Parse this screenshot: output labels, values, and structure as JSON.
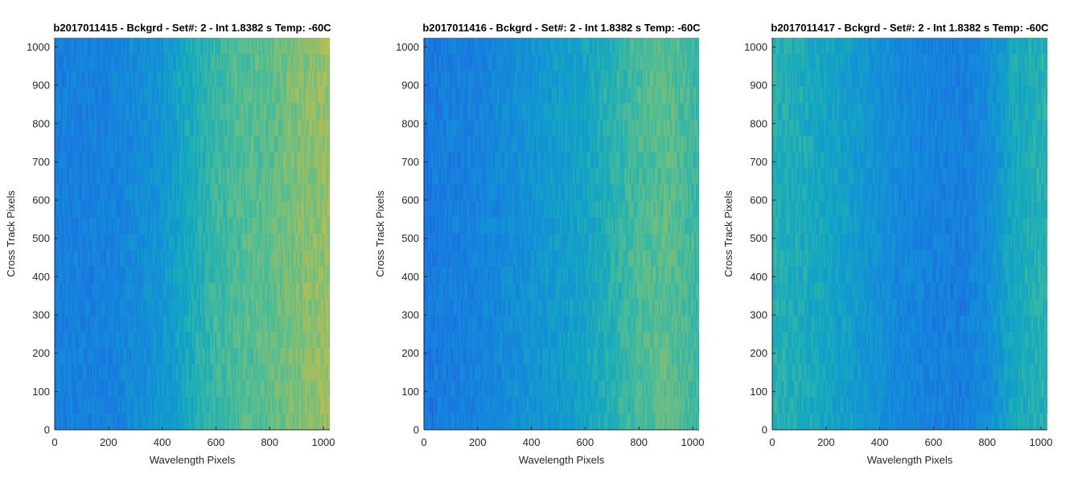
{
  "chart_data": [
    {
      "type": "heatmap",
      "title": "b2017011415 - Bckgrd - Set#: 2 - Int 1.8382 s Temp: -60C",
      "xlabel": "Wavelength Pixels",
      "ylabel": "Cross Track Pixels",
      "xlim": [
        0,
        1024
      ],
      "ylim": [
        0,
        1024
      ],
      "xticks": [
        "0",
        "200",
        "400",
        "600",
        "800",
        "1000"
      ],
      "yticks": [
        "0",
        "100",
        "200",
        "300",
        "400",
        "500",
        "600",
        "700",
        "800",
        "900",
        "1000"
      ],
      "colormap": "parula",
      "intensity_by_wavelength": {
        "x": [
          0,
          200,
          400,
          500,
          600,
          700,
          800,
          900,
          1024
        ],
        "relative_level": [
          0.25,
          0.25,
          0.35,
          0.45,
          0.55,
          0.6,
          0.62,
          0.68,
          0.72
        ]
      }
    },
    {
      "type": "heatmap",
      "title": "b2017011416 - Bckgrd - Set#: 2 - Int 1.8382 s Temp: -60C",
      "xlabel": "Wavelength Pixels",
      "ylabel": "Cross Track Pixels",
      "xlim": [
        0,
        1024
      ],
      "ylim": [
        0,
        1024
      ],
      "xticks": [
        "0",
        "200",
        "400",
        "600",
        "800",
        "1000"
      ],
      "yticks": [
        "0",
        "100",
        "200",
        "300",
        "400",
        "500",
        "600",
        "700",
        "800",
        "900",
        "1000"
      ],
      "colormap": "parula",
      "intensity_by_wavelength": {
        "x": [
          0,
          200,
          400,
          600,
          700,
          800,
          900,
          1024
        ],
        "relative_level": [
          0.22,
          0.26,
          0.34,
          0.42,
          0.5,
          0.58,
          0.62,
          0.55
        ]
      }
    },
    {
      "type": "heatmap",
      "title": "b2017011417 - Bckgrd - Set#: 2 - Int 1.8382 s Temp: -60C",
      "xlabel": "Wavelength Pixels",
      "ylabel": "Cross Track Pixels",
      "xlim": [
        0,
        1024
      ],
      "ylim": [
        0,
        1024
      ],
      "xticks": [
        "0",
        "200",
        "400",
        "600",
        "800",
        "1000"
      ],
      "yticks": [
        "0",
        "100",
        "200",
        "300",
        "400",
        "500",
        "600",
        "700",
        "800",
        "900",
        "1000"
      ],
      "colormap": "parula",
      "intensity_by_wavelength": {
        "x": [
          0,
          150,
          300,
          450,
          600,
          700,
          800,
          900,
          1024
        ],
        "relative_level": [
          0.5,
          0.45,
          0.38,
          0.3,
          0.25,
          0.24,
          0.3,
          0.45,
          0.5
        ]
      }
    }
  ]
}
